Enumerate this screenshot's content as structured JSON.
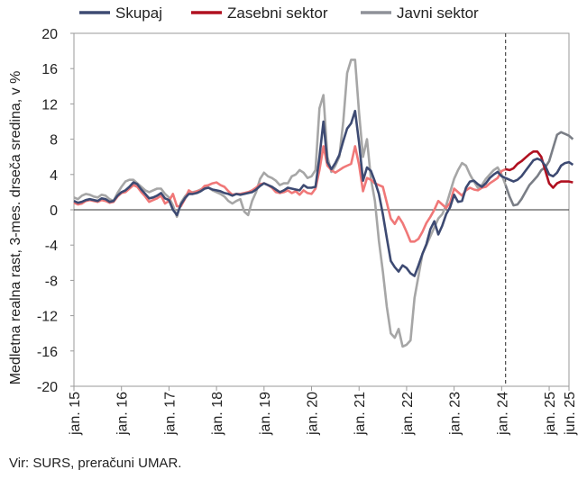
{
  "chart_data": {
    "type": "line",
    "ylabel": "Medletna realna rast, 3-mes. drseča sredina, v %",
    "ylim": [
      -20,
      20
    ],
    "y_ticks": [
      -20,
      -16,
      -12,
      -8,
      -4,
      0,
      4,
      8,
      12,
      16,
      20
    ],
    "x_tick_labels": [
      "jan. 15",
      "jan. 16",
      "jan. 17",
      "jan. 18",
      "jan. 19",
      "jan. 20",
      "jan. 21",
      "jan. 22",
      "jan. 23",
      "jan. 24",
      "jan. 25",
      "jun. 25"
    ],
    "x_tick_months": [
      0,
      12,
      24,
      36,
      48,
      60,
      72,
      84,
      96,
      108,
      120,
      125
    ],
    "x_range_months": [
      0,
      125
    ],
    "projection_start_month": 109,
    "grid": false,
    "legend_position": "top",
    "series": [
      {
        "name": "Skupaj",
        "color": "#3d4a72",
        "projection_color": "#3d4a72",
        "values": [
          1.0,
          0.8,
          0.9,
          1.1,
          1.2,
          1.1,
          1.0,
          1.3,
          1.2,
          0.9,
          1.0,
          1.6,
          2.0,
          2.2,
          2.6,
          3.1,
          2.9,
          2.3,
          1.8,
          1.3,
          1.4,
          1.6,
          1.9,
          1.3,
          1.1,
          0.0,
          -0.6,
          0.6,
          1.3,
          1.8,
          1.8,
          1.9,
          2.1,
          2.4,
          2.5,
          2.3,
          2.2,
          2.1,
          1.9,
          1.8,
          1.6,
          1.8,
          1.7,
          1.8,
          1.9,
          2.0,
          2.3,
          2.7,
          3.0,
          2.8,
          2.6,
          2.3,
          2.0,
          2.2,
          2.5,
          2.4,
          2.3,
          2.2,
          2.8,
          2.5,
          2.5,
          2.6,
          6.0,
          10.0,
          5.4,
          4.6,
          5.3,
          6.2,
          7.8,
          9.2,
          9.8,
          11.2,
          7.6,
          3.3,
          4.8,
          4.4,
          3.2,
          1.8,
          -0.5,
          -3.2,
          -5.8,
          -6.5,
          -7.0,
          -6.3,
          -6.6,
          -7.2,
          -7.5,
          -6.3,
          -5.0,
          -3.9,
          -2.2,
          -1.3,
          -2.8,
          -1.8,
          -0.5,
          0.3,
          1.7,
          0.9,
          1.0,
          2.5,
          3.2,
          3.3,
          2.9,
          2.6,
          3.0,
          3.6,
          4.0,
          4.3,
          3.8,
          3.6,
          3.4,
          3.2,
          3.4,
          3.8,
          4.4,
          5.0,
          5.6,
          5.8,
          5.6,
          5.0,
          4.0,
          3.8,
          4.2,
          5.0,
          5.3,
          5.4,
          5.1
        ]
      },
      {
        "name": "Zasebni sektor",
        "color": "#f07878",
        "projection_color": "#b01020",
        "values": [
          0.8,
          0.6,
          0.7,
          1.0,
          1.1,
          1.0,
          0.9,
          1.1,
          1.0,
          0.8,
          0.9,
          1.5,
          1.9,
          2.0,
          2.4,
          2.8,
          2.6,
          2.0,
          1.5,
          0.9,
          1.1,
          1.3,
          1.6,
          0.7,
          1.0,
          1.8,
          0.4,
          0.4,
          1.2,
          2.2,
          1.9,
          2.1,
          2.2,
          2.7,
          2.8,
          3.0,
          3.1,
          2.8,
          2.6,
          2.1,
          1.7,
          1.8,
          1.8,
          1.9,
          2.0,
          2.2,
          2.5,
          2.9,
          3.0,
          2.8,
          2.5,
          2.0,
          1.9,
          2.0,
          2.2,
          1.9,
          2.1,
          1.7,
          2.2,
          1.9,
          1.8,
          2.4,
          4.5,
          7.2,
          5.0,
          4.5,
          4.2,
          4.5,
          4.8,
          5.0,
          5.2,
          7.2,
          5.1,
          2.1,
          3.6,
          3.4,
          3.0,
          2.8,
          2.6,
          0.8,
          -1.0,
          -1.6,
          -0.8,
          -1.5,
          -2.5,
          -3.6,
          -3.6,
          -3.3,
          -2.5,
          -1.5,
          -0.8,
          0.0,
          1.0,
          0.6,
          0.2,
          0.8,
          2.4,
          2.0,
          1.6,
          2.2,
          2.5,
          2.3,
          2.2,
          2.5,
          2.6,
          3.0,
          3.3,
          3.6,
          4.4,
          4.6,
          4.5,
          4.7,
          5.2,
          5.5,
          5.9,
          6.3,
          6.6,
          6.6,
          6.0,
          4.5,
          3.0,
          2.5,
          3.0,
          3.2,
          3.2,
          3.2,
          3.1
        ]
      },
      {
        "name": "Javni sektor",
        "color": "#a6a6a6",
        "projection_color": "#7a7e86",
        "values": [
          1.4,
          1.2,
          1.6,
          1.8,
          1.7,
          1.5,
          1.4,
          1.7,
          1.6,
          1.2,
          1.0,
          1.9,
          2.6,
          3.2,
          3.4,
          3.4,
          3.0,
          2.6,
          2.2,
          2.0,
          2.2,
          2.4,
          2.4,
          1.8,
          1.4,
          0.5,
          -0.8,
          0.8,
          1.5,
          2.0,
          2.0,
          2.1,
          2.3,
          2.5,
          2.5,
          2.2,
          2.0,
          1.8,
          1.5,
          1.0,
          0.7,
          1.0,
          1.2,
          -0.2,
          -0.6,
          1.0,
          2.0,
          3.5,
          4.2,
          3.8,
          3.6,
          3.3,
          2.8,
          3.0,
          3.0,
          3.8,
          4.0,
          4.5,
          4.2,
          3.6,
          3.8,
          4.5,
          11.5,
          13.0,
          6.0,
          4.3,
          5.0,
          6.0,
          10.0,
          15.5,
          17.0,
          17.0,
          11.0,
          6.0,
          8.0,
          3.5,
          1.0,
          -3.5,
          -7.0,
          -11.0,
          -14.0,
          -14.5,
          -13.5,
          -15.5,
          -15.3,
          -14.8,
          -10.0,
          -7.5,
          -5.0,
          -4.0,
          -3.0,
          -2.0,
          -1.0,
          -0.5,
          0.5,
          2.0,
          3.5,
          4.5,
          5.3,
          5.0,
          4.0,
          3.2,
          2.5,
          2.8,
          3.5,
          4.0,
          4.5,
          4.8,
          4.0,
          2.8,
          1.5,
          0.5,
          0.6,
          1.2,
          2.0,
          2.8,
          3.3,
          3.8,
          4.5,
          4.8,
          5.5,
          7.0,
          8.5,
          8.8,
          8.6,
          8.4,
          8.0
        ]
      }
    ]
  },
  "legend": [
    {
      "label": "Skupaj",
      "color": "#3d4a72"
    },
    {
      "label": "Zasebni sektor",
      "color": "#b01020"
    },
    {
      "label": "Javni sektor",
      "color": "#8e9198"
    }
  ],
  "source": "Vir: SURS, preračuni UMAR."
}
